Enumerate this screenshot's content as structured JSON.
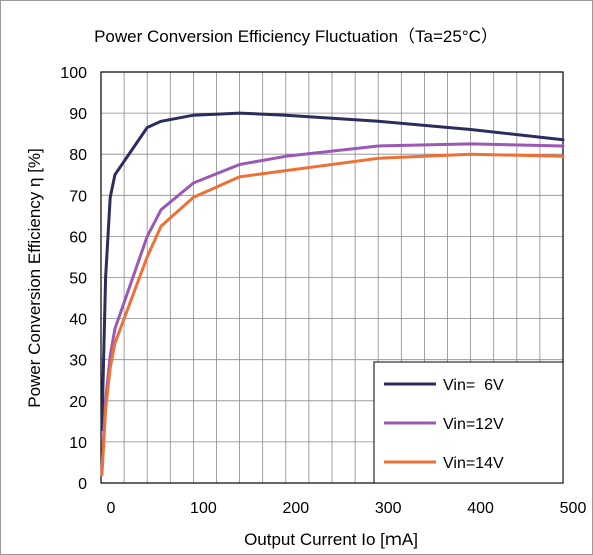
{
  "chart_data": {
    "type": "line",
    "title": "Power Conversion Efficiency Fluctuation（Ta=25°C）",
    "xlabel": "Output Current Io [ｍA]",
    "ylabel": "Power Conversion Efficiency η [%]",
    "xlim": [
      0,
      500
    ],
    "ylim": [
      0,
      100
    ],
    "xticks": [
      0,
      100,
      200,
      300,
      400,
      500
    ],
    "yticks": [
      0,
      10,
      20,
      30,
      40,
      50,
      60,
      70,
      80,
      90,
      100
    ],
    "grid": true,
    "legend_position": "bottom-right",
    "series": [
      {
        "name": "Vin=  6V",
        "color": "#2b2d5c",
        "x": [
          1,
          5,
          10,
          15,
          50,
          65,
          100,
          150,
          200,
          300,
          400,
          500
        ],
        "y": [
          13,
          50,
          69.5,
          75,
          86.5,
          88,
          89.5,
          90,
          89.5,
          88,
          86,
          83.5
        ]
      },
      {
        "name": "Vin=12V",
        "color": "#9b58b5",
        "x": [
          1,
          3,
          5,
          10,
          15,
          50,
          65,
          100,
          150,
          200,
          300,
          400,
          500
        ],
        "y": [
          3,
          12,
          20,
          31,
          37.5,
          60,
          66.5,
          73,
          77.5,
          79.5,
          82,
          82.5,
          82
        ]
      },
      {
        "name": "Vin=14V",
        "color": "#ef7036",
        "x": [
          1,
          3,
          5,
          10,
          15,
          50,
          65,
          100,
          150,
          200,
          300,
          400,
          500
        ],
        "y": [
          2,
          10,
          18,
          28,
          34,
          55,
          62.5,
          69.5,
          74.5,
          76,
          79,
          80,
          79.5
        ]
      }
    ]
  }
}
